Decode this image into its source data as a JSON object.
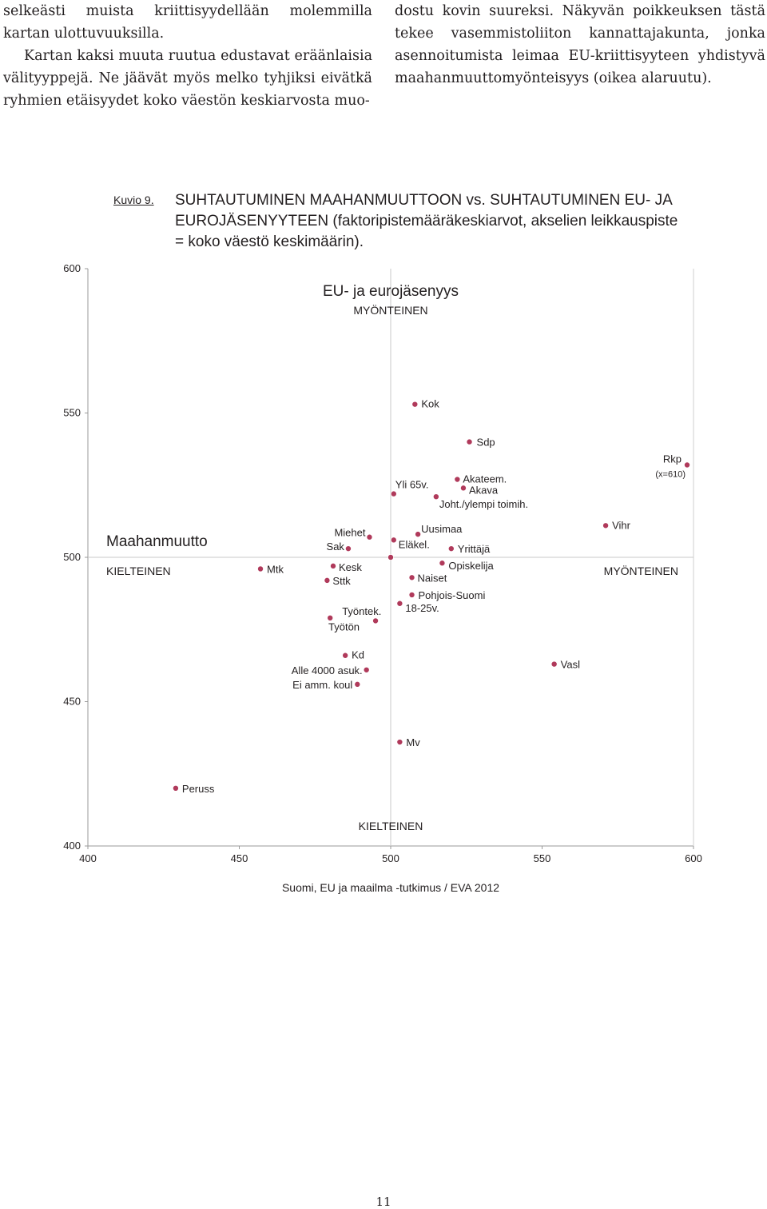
{
  "text_left": [
    "selkeästi muista kriittisyydellään molemmilla kartan ulottuvuuksilla.",
    "Kartan kaksi muuta ruutua edustavat eräänlaisia välityyppejä. Ne jäävät myös melko tyhjiksi eivätkä ryhmien etäisyydet koko väestön keskiarvosta muo-"
  ],
  "text_right": [
    "dostu kovin suureksi. Näkyvän poikkeuksen tästä tekee vasemmistoliiton kannattajakunta, jonka asennoitumista leimaa EU-kriittisyyteen yhdistyvä maahanmuuttomyönteisyys (oikea alaruutu)."
  ],
  "figure": {
    "label": "Kuvio 9.",
    "title": "SUHTAUTUMINEN MAAHANMUUTTOON vs. SUHTAUTUMINEN EU- JA EUROJÄSENYYTEEN (faktoripistemääräkeskiarvot, akselien leikkauspiste = koko väestö keskimäärin)."
  },
  "page_number": "11",
  "chart_data": {
    "type": "scatter",
    "title": "",
    "xlabel": "",
    "ylabel": "",
    "xlim": [
      400,
      600
    ],
    "ylim": [
      400,
      600
    ],
    "x_ticks": [
      "400",
      "450",
      "500",
      "550",
      "600"
    ],
    "y_ticks": [
      "400",
      "450",
      "500",
      "550",
      "600"
    ],
    "crosshair": {
      "x": 500,
      "y": 500
    },
    "grid": false,
    "marker_color": "#b03a5b",
    "annotations": {
      "y_axis_title": "EU- ja eurojäsenyys",
      "y_positive": "MYÖNTEINEN",
      "y_negative": "KIELTEINEN",
      "x_axis_title": "Maahanmuutto",
      "x_negative": "KIELTEINEN",
      "x_positive": "MYÖNTEINEN",
      "rkp_note": "(x=610)",
      "source": "Suomi, EU ja maailma -tutkimus / EVA 2012"
    },
    "points": [
      {
        "label": "Kok",
        "x": 508,
        "y": 553
      },
      {
        "label": "Sdp",
        "x": 526,
        "y": 540
      },
      {
        "label": "Rkp",
        "x": 610,
        "y": 532
      },
      {
        "label": "Akateem.",
        "x": 522,
        "y": 527
      },
      {
        "label": "Akava",
        "x": 524,
        "y": 524
      },
      {
        "label": "Yli 65v.",
        "x": 501,
        "y": 522
      },
      {
        "label": "Joht./ylempi toimih.",
        "x": 515,
        "y": 521
      },
      {
        "label": "Vihr",
        "x": 571,
        "y": 511
      },
      {
        "label": "Uusimaa",
        "x": 509,
        "y": 508
      },
      {
        "label": "Miehet",
        "x": 493,
        "y": 507
      },
      {
        "label": "Eläkel.",
        "x": 501,
        "y": 506
      },
      {
        "label": "Sak",
        "x": 486,
        "y": 503
      },
      {
        "label": "Yrittäjä",
        "x": 520,
        "y": 503
      },
      {
        "label": "",
        "x": 500,
        "y": 500
      },
      {
        "label": "Opiskelija",
        "x": 517,
        "y": 498
      },
      {
        "label": "Mtk",
        "x": 457,
        "y": 496
      },
      {
        "label": "Kesk",
        "x": 481,
        "y": 497
      },
      {
        "label": "Naiset",
        "x": 507,
        "y": 493
      },
      {
        "label": "Sttk",
        "x": 479,
        "y": 492
      },
      {
        "label": "Pohjois-Suomi",
        "x": 507,
        "y": 487
      },
      {
        "label": "18-25v.",
        "x": 503,
        "y": 484
      },
      {
        "label": "Työntek.",
        "x": 480,
        "y": 479
      },
      {
        "label": "Työtön",
        "x": 495,
        "y": 478
      },
      {
        "label": "Kd",
        "x": 485,
        "y": 466
      },
      {
        "label": "Alle 4000 asuk.",
        "x": 492,
        "y": 461
      },
      {
        "label": "Vasl",
        "x": 554,
        "y": 463
      },
      {
        "label": "Ei amm. koul",
        "x": 489,
        "y": 456
      },
      {
        "label": "Mv",
        "x": 503,
        "y": 436
      },
      {
        "label": "Peruss",
        "x": 429,
        "y": 420
      }
    ]
  }
}
